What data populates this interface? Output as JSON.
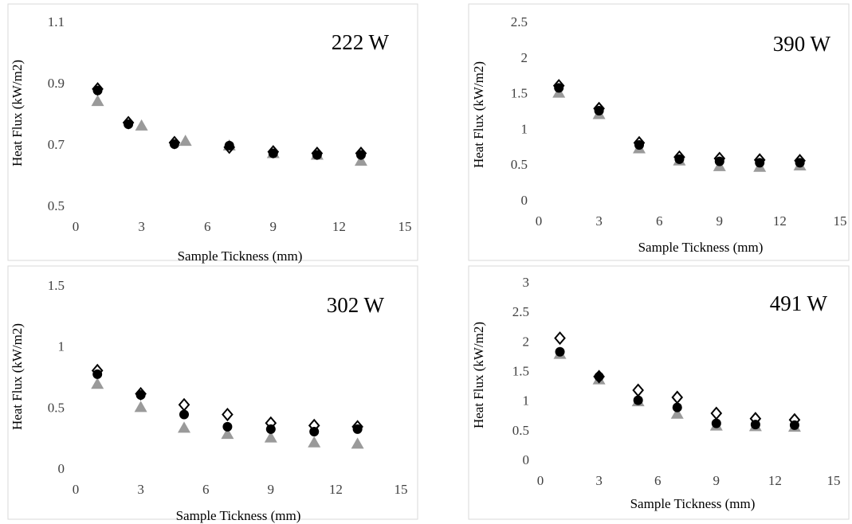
{
  "chart_data": [
    {
      "type": "scatter",
      "title": "222 W",
      "xlabel": "Sample Tickness (mm)",
      "ylabel": "Heat Flux (kW/m2)",
      "xlim": [
        0,
        15
      ],
      "ylim": [
        0.5,
        1.1
      ],
      "xticks": [
        0,
        3,
        6,
        9,
        12,
        15
      ],
      "yticks": [
        0.5,
        0.7,
        0.9,
        1.1
      ],
      "ytick_labels": [
        "0.5",
        "0.7",
        "0.9",
        "1.1"
      ],
      "series": [
        {
          "marker": "diamond-open",
          "x": [
            1,
            2.4,
            4.5,
            7,
            9,
            11,
            13
          ],
          "y": [
            0.88,
            0.77,
            0.705,
            0.69,
            0.675,
            0.67,
            0.67
          ]
        },
        {
          "marker": "circle-filled",
          "x": [
            1,
            2.4,
            4.5,
            7,
            9,
            11,
            13
          ],
          "y": [
            0.875,
            0.765,
            0.7,
            0.695,
            0.67,
            0.665,
            0.665
          ]
        },
        {
          "marker": "triangle-gray",
          "x": [
            1,
            3,
            5,
            7,
            9,
            11,
            13
          ],
          "y": [
            0.84,
            0.76,
            0.71,
            0.695,
            0.67,
            0.665,
            0.645
          ]
        }
      ]
    },
    {
      "type": "scatter",
      "title": "390 W",
      "xlabel": "Sample Tickness (mm)",
      "ylabel": "Heat Flux (kW/m2)",
      "xlim": [
        0,
        15
      ],
      "ylim": [
        0,
        2.5
      ],
      "xticks": [
        0,
        3,
        6,
        9,
        12,
        15
      ],
      "yticks": [
        0,
        0.5,
        1,
        1.5,
        2,
        2.5
      ],
      "ytick_labels": [
        "0",
        "0.5",
        "1",
        "1.5",
        "2",
        "2.5"
      ],
      "series": [
        {
          "marker": "diamond-open",
          "x": [
            1,
            3,
            5,
            7,
            9,
            11,
            13
          ],
          "y": [
            1.6,
            1.28,
            0.8,
            0.6,
            0.58,
            0.56,
            0.55
          ]
        },
        {
          "marker": "circle-filled",
          "x": [
            1,
            3,
            5,
            7,
            9,
            11,
            13
          ],
          "y": [
            1.57,
            1.25,
            0.77,
            0.57,
            0.54,
            0.52,
            0.52
          ]
        },
        {
          "marker": "triangle-gray",
          "x": [
            1,
            3,
            5,
            7,
            9,
            11,
            13
          ],
          "y": [
            1.5,
            1.2,
            0.72,
            0.55,
            0.47,
            0.46,
            0.48
          ]
        }
      ]
    },
    {
      "type": "scatter",
      "title": "302 W",
      "xlabel": "Sample Tickness (mm)",
      "ylabel": "Heat Flux (kW/m2)",
      "xlim": [
        0,
        15
      ],
      "ylim": [
        0,
        1.5
      ],
      "xticks": [
        0,
        3,
        6,
        9,
        12,
        15
      ],
      "yticks": [
        0,
        0.5,
        1,
        1.5
      ],
      "ytick_labels": [
        "0",
        "0.5",
        "1",
        "1.5"
      ],
      "series": [
        {
          "marker": "diamond-open",
          "x": [
            1,
            3,
            5,
            7,
            9,
            11,
            13
          ],
          "y": [
            0.8,
            0.61,
            0.52,
            0.44,
            0.37,
            0.35,
            0.34
          ]
        },
        {
          "marker": "circle-filled",
          "x": [
            1,
            3,
            5,
            7,
            9,
            11,
            13
          ],
          "y": [
            0.77,
            0.6,
            0.44,
            0.34,
            0.32,
            0.3,
            0.32
          ]
        },
        {
          "marker": "triangle-gray",
          "x": [
            1,
            3,
            5,
            7,
            9,
            11,
            13
          ],
          "y": [
            0.69,
            0.5,
            0.33,
            0.28,
            0.25,
            0.21,
            0.2
          ]
        }
      ]
    },
    {
      "type": "scatter",
      "title": "491 W",
      "xlabel": "Sample Tickness (mm)",
      "ylabel": "Heat Flux (kW/m2)",
      "xlim": [
        0,
        15
      ],
      "ylim": [
        0,
        3
      ],
      "xticks": [
        0,
        3,
        6,
        9,
        12,
        15
      ],
      "yticks": [
        0,
        0.5,
        1,
        1.5,
        2,
        2.5,
        3
      ],
      "ytick_labels": [
        "0",
        "0.5",
        "1",
        "1.5",
        "2",
        "2.5",
        "3"
      ],
      "series": [
        {
          "marker": "diamond-open",
          "x": [
            1,
            3,
            5,
            7,
            9,
            11,
            13
          ],
          "y": [
            2.05,
            1.4,
            1.17,
            1.05,
            0.78,
            0.69,
            0.67
          ]
        },
        {
          "marker": "circle-filled",
          "x": [
            1,
            3,
            5,
            7,
            9,
            11,
            13
          ],
          "y": [
            1.82,
            1.4,
            1.0,
            0.88,
            0.61,
            0.59,
            0.58
          ]
        },
        {
          "marker": "triangle-gray",
          "x": [
            1,
            3,
            5,
            7,
            9,
            11,
            13
          ],
          "y": [
            1.78,
            1.35,
            0.98,
            0.77,
            0.57,
            0.56,
            0.55
          ]
        }
      ]
    }
  ]
}
